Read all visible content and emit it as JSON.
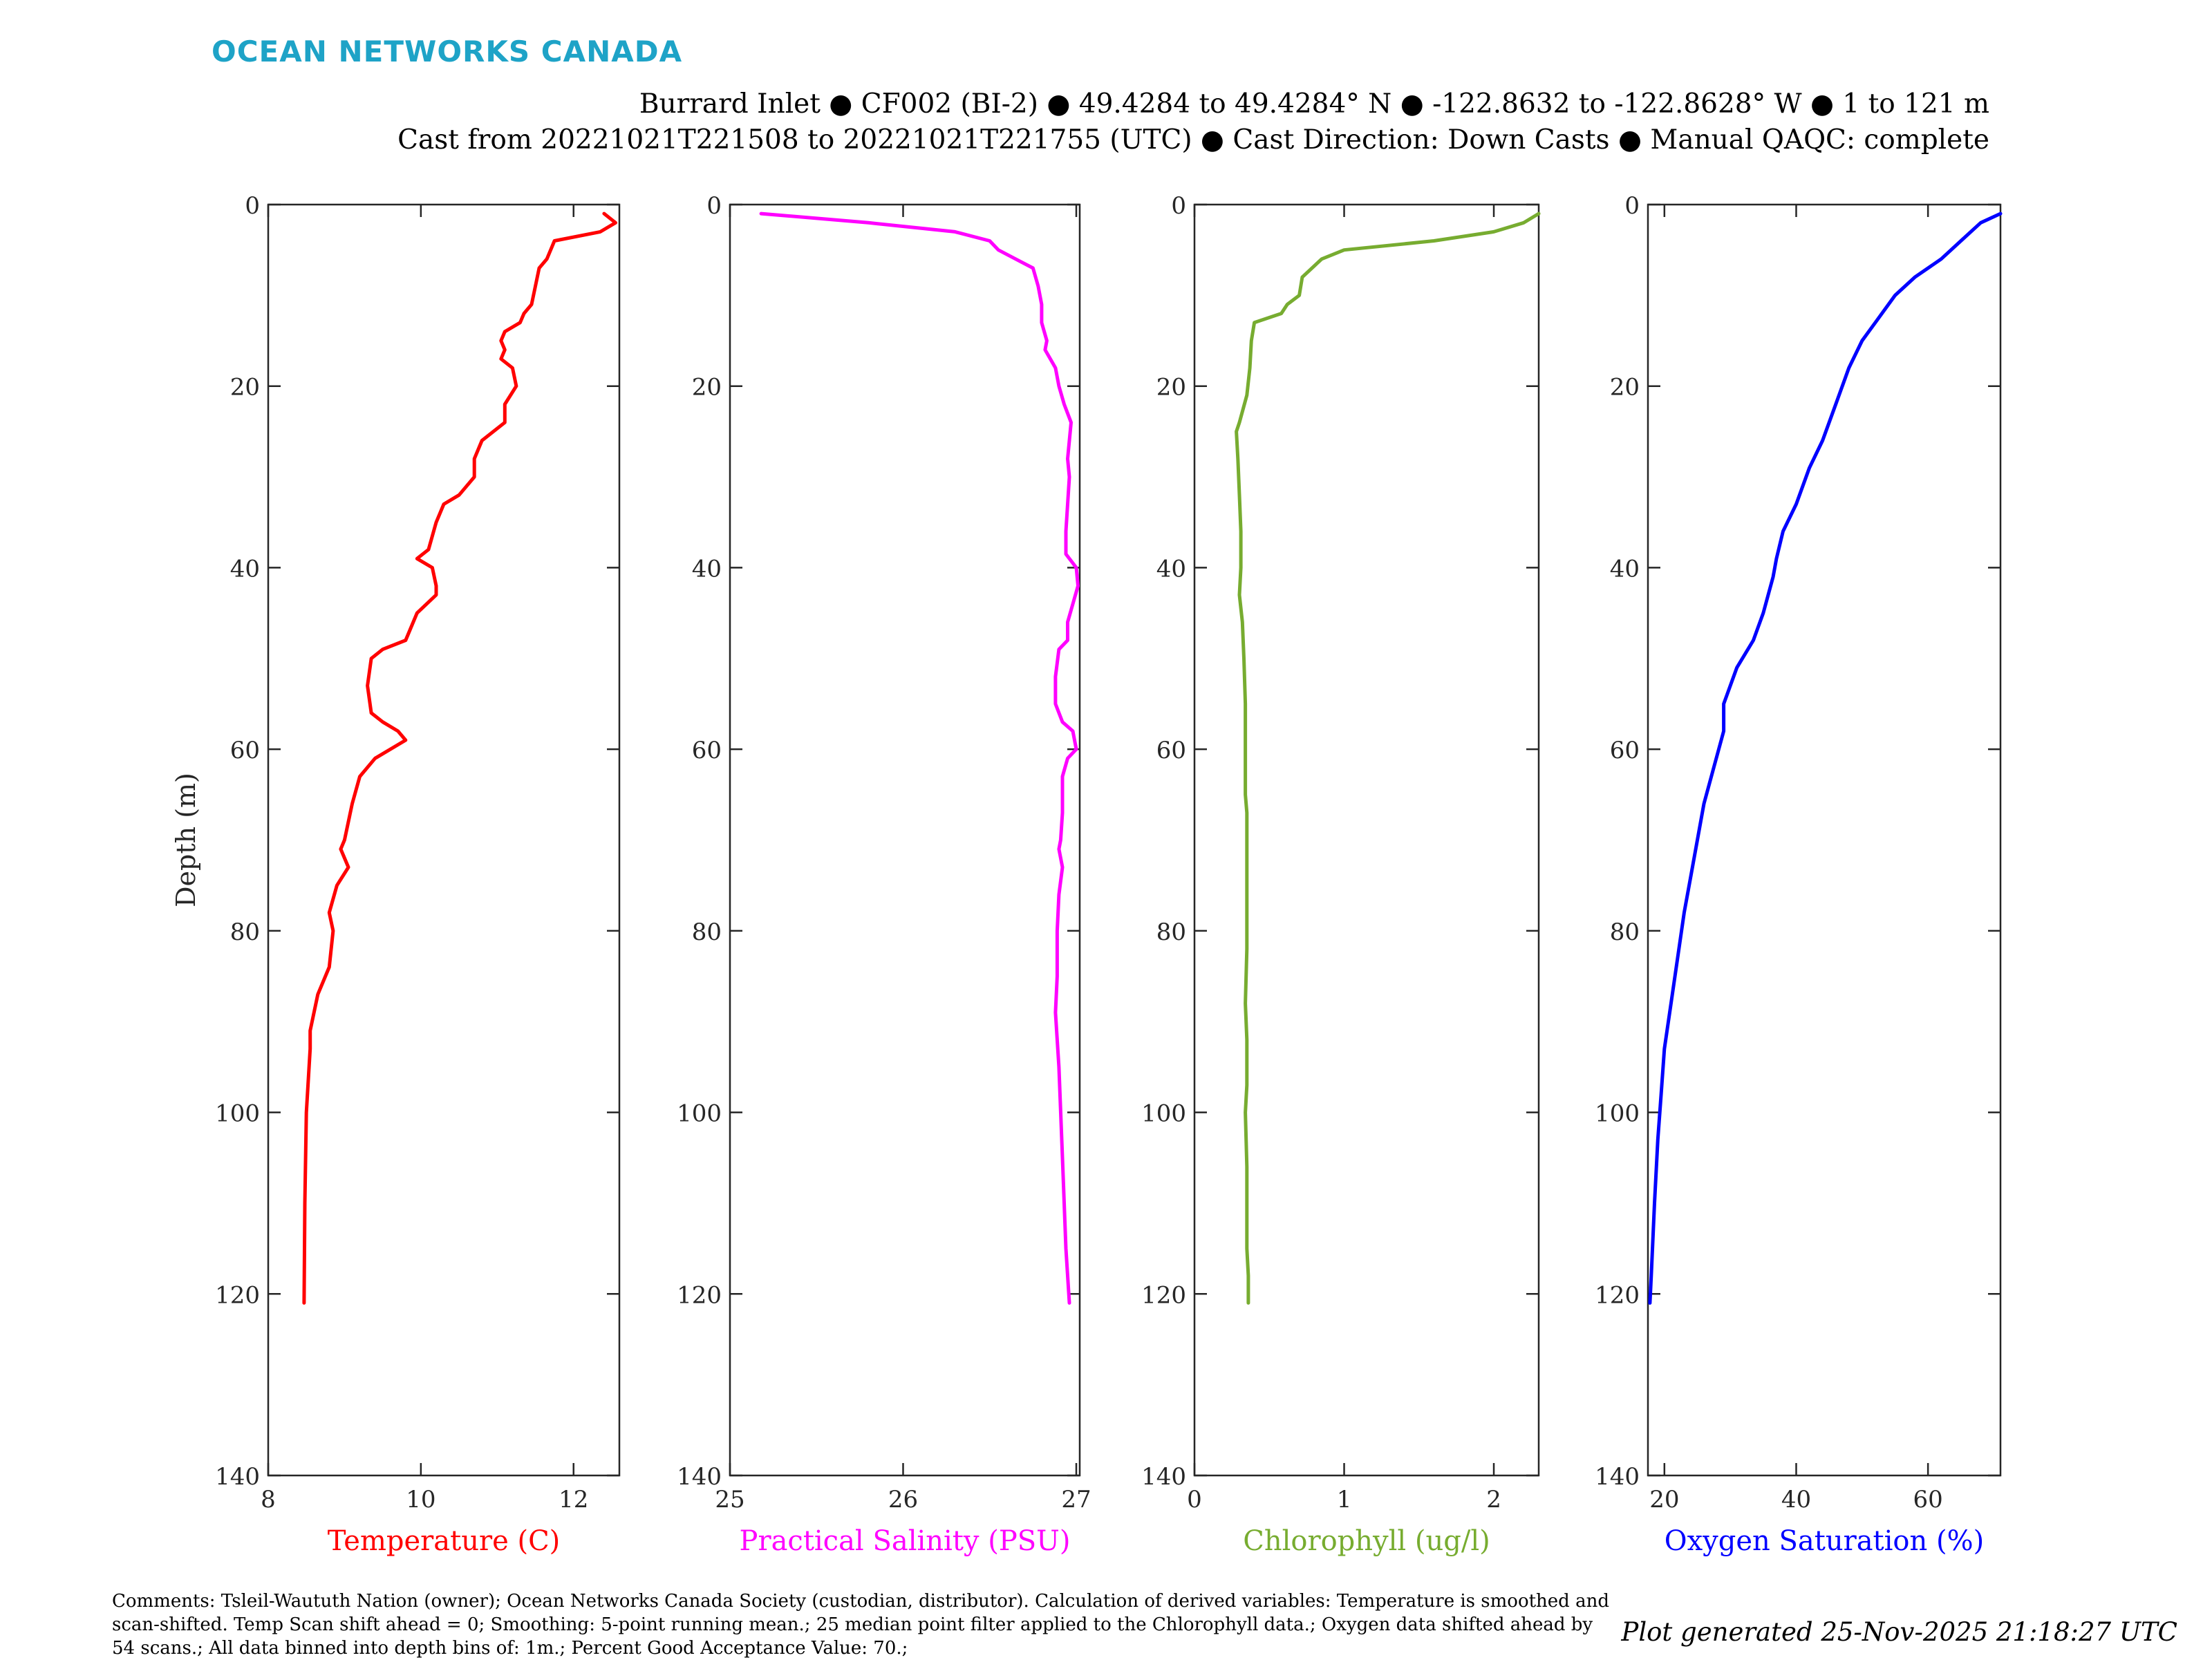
{
  "logo_text": "OCEAN NETWORKS CANADA",
  "header": {
    "line1": "Burrard Inlet ● CF002 (BI-2) ● 49.4284 to 49.4284° N ● -122.8632 to -122.8628° W ● 1 to 121 m",
    "line2": "Cast from 20221021T221508 to 20221021T221755 (UTC) ● Cast Direction: Down Casts ● Manual QAQC: complete"
  },
  "comments": "Comments: Tsleil-Waututh Nation (owner); Ocean Networks Canada Society (custodian, distributor). Calculation of derived variables: Temperature is smoothed and scan-shifted. Temp Scan shift ahead = 0; Smoothing: 5-point running mean.; 25 median point filter applied to the Chlorophyll data.; Oxygen data shifted ahead by 54 scans.; All data binned into depth bins of: 1m.; Percent Good Acceptance Value: 70.;",
  "generated": "Plot generated 25-Nov-2025 21:18:27 UTC",
  "chart_data": [
    {
      "type": "line",
      "xlabel": "Temperature (C)",
      "ylabel": "Depth (m)",
      "color": "#ff0000",
      "xlim": [
        8,
        12.6
      ],
      "ylim": [
        0,
        140
      ],
      "y_reversed": true,
      "xticks": [
        8,
        10,
        12
      ],
      "yticks": [
        0,
        20,
        40,
        60,
        80,
        100,
        120,
        140
      ],
      "points": [
        [
          12.4,
          1
        ],
        [
          12.55,
          2
        ],
        [
          12.35,
          3
        ],
        [
          11.75,
          4
        ],
        [
          11.7,
          5
        ],
        [
          11.65,
          6
        ],
        [
          11.55,
          7
        ],
        [
          11.5,
          9
        ],
        [
          11.45,
          11
        ],
        [
          11.35,
          12
        ],
        [
          11.3,
          13
        ],
        [
          11.1,
          14
        ],
        [
          11.05,
          15
        ],
        [
          11.1,
          16
        ],
        [
          11.05,
          17
        ],
        [
          11.2,
          18
        ],
        [
          11.25,
          20
        ],
        [
          11.1,
          22
        ],
        [
          11.1,
          24
        ],
        [
          10.8,
          26
        ],
        [
          10.7,
          28
        ],
        [
          10.7,
          30
        ],
        [
          10.5,
          32
        ],
        [
          10.3,
          33
        ],
        [
          10.2,
          35
        ],
        [
          10.1,
          38
        ],
        [
          9.95,
          39
        ],
        [
          10.15,
          40
        ],
        [
          10.2,
          42
        ],
        [
          10.2,
          43
        ],
        [
          9.95,
          45
        ],
        [
          9.85,
          47
        ],
        [
          9.8,
          48
        ],
        [
          9.5,
          49
        ],
        [
          9.35,
          50
        ],
        [
          9.3,
          53
        ],
        [
          9.35,
          56
        ],
        [
          9.5,
          57
        ],
        [
          9.7,
          58
        ],
        [
          9.8,
          59
        ],
        [
          9.4,
          61
        ],
        [
          9.2,
          63
        ],
        [
          9.1,
          66
        ],
        [
          9.0,
          70
        ],
        [
          8.95,
          71
        ],
        [
          9.05,
          73
        ],
        [
          8.9,
          75
        ],
        [
          8.8,
          78
        ],
        [
          8.85,
          80
        ],
        [
          8.8,
          84
        ],
        [
          8.65,
          87
        ],
        [
          8.55,
          91
        ],
        [
          8.55,
          93
        ],
        [
          8.5,
          100
        ],
        [
          8.48,
          110
        ],
        [
          8.47,
          121
        ]
      ]
    },
    {
      "type": "line",
      "xlabel": "Practical Salinity (PSU)",
      "ylabel": "",
      "color": "#ff00ff",
      "xlim": [
        25,
        27.02
      ],
      "ylim": [
        0,
        140
      ],
      "y_reversed": true,
      "xticks": [
        25,
        26,
        27
      ],
      "yticks": [
        0,
        20,
        40,
        60,
        80,
        100,
        120,
        140
      ],
      "points": [
        [
          25.18,
          1
        ],
        [
          25.8,
          2
        ],
        [
          26.3,
          3
        ],
        [
          26.5,
          4
        ],
        [
          26.55,
          5
        ],
        [
          26.65,
          6
        ],
        [
          26.75,
          7
        ],
        [
          26.78,
          9
        ],
        [
          26.8,
          11
        ],
        [
          26.8,
          13
        ],
        [
          26.83,
          15
        ],
        [
          26.82,
          16
        ],
        [
          26.85,
          17
        ],
        [
          26.88,
          18
        ],
        [
          26.9,
          20
        ],
        [
          26.93,
          22
        ],
        [
          26.97,
          24
        ],
        [
          26.96,
          26
        ],
        [
          26.95,
          28
        ],
        [
          26.96,
          30
        ],
        [
          26.95,
          33
        ],
        [
          26.94,
          36
        ],
        [
          26.94,
          38.5
        ],
        [
          26.96,
          39
        ],
        [
          27.0,
          40
        ],
        [
          27.01,
          42
        ],
        [
          26.98,
          44
        ],
        [
          26.95,
          46
        ],
        [
          26.95,
          48
        ],
        [
          26.9,
          49
        ],
        [
          26.88,
          52
        ],
        [
          26.88,
          55
        ],
        [
          26.92,
          57
        ],
        [
          26.98,
          58
        ],
        [
          27.0,
          60
        ],
        [
          26.95,
          61
        ],
        [
          26.92,
          63
        ],
        [
          26.92,
          67
        ],
        [
          26.91,
          70
        ],
        [
          26.9,
          71
        ],
        [
          26.92,
          73
        ],
        [
          26.9,
          76
        ],
        [
          26.89,
          80
        ],
        [
          26.89,
          85
        ],
        [
          26.88,
          89
        ],
        [
          26.9,
          95
        ],
        [
          26.92,
          105
        ],
        [
          26.94,
          115
        ],
        [
          26.96,
          121
        ]
      ]
    },
    {
      "type": "line",
      "xlabel": "Chlorophyll (ug/l)",
      "ylabel": "",
      "color": "#77ac30",
      "xlim": [
        0,
        2.3
      ],
      "ylim": [
        0,
        140
      ],
      "y_reversed": true,
      "xticks": [
        0,
        1,
        2
      ],
      "yticks": [
        0,
        20,
        40,
        60,
        80,
        100,
        120,
        140
      ],
      "points": [
        [
          2.3,
          1
        ],
        [
          2.2,
          2
        ],
        [
          2.0,
          3
        ],
        [
          1.6,
          4
        ],
        [
          1.0,
          5
        ],
        [
          0.85,
          6
        ],
        [
          0.72,
          8
        ],
        [
          0.7,
          10
        ],
        [
          0.62,
          11
        ],
        [
          0.58,
          12
        ],
        [
          0.4,
          13
        ],
        [
          0.38,
          15
        ],
        [
          0.37,
          18
        ],
        [
          0.35,
          21
        ],
        [
          0.3,
          24
        ],
        [
          0.28,
          25
        ],
        [
          0.29,
          28
        ],
        [
          0.3,
          32
        ],
        [
          0.31,
          36
        ],
        [
          0.31,
          40
        ],
        [
          0.3,
          43
        ],
        [
          0.32,
          46
        ],
        [
          0.33,
          50
        ],
        [
          0.34,
          55
        ],
        [
          0.34,
          60
        ],
        [
          0.34,
          65
        ],
        [
          0.35,
          67
        ],
        [
          0.35,
          75
        ],
        [
          0.35,
          82
        ],
        [
          0.34,
          88
        ],
        [
          0.35,
          92
        ],
        [
          0.35,
          97
        ],
        [
          0.34,
          100
        ],
        [
          0.35,
          106
        ],
        [
          0.35,
          112
        ],
        [
          0.35,
          115
        ],
        [
          0.36,
          118
        ],
        [
          0.36,
          121
        ]
      ]
    },
    {
      "type": "line",
      "xlabel": "Oxygen Saturation (%)",
      "ylabel": "",
      "color": "#0000ff",
      "xlim": [
        17.5,
        71
      ],
      "ylim": [
        0,
        140
      ],
      "y_reversed": true,
      "xticks": [
        20,
        40,
        60
      ],
      "yticks": [
        0,
        20,
        40,
        60,
        80,
        100,
        120,
        140
      ],
      "points": [
        [
          71,
          1
        ],
        [
          68,
          2
        ],
        [
          65,
          4
        ],
        [
          62,
          6
        ],
        [
          58,
          8
        ],
        [
          55,
          10
        ],
        [
          52,
          13
        ],
        [
          50,
          15
        ],
        [
          48,
          18
        ],
        [
          46,
          22
        ],
        [
          44,
          26
        ],
        [
          42,
          29
        ],
        [
          40,
          33
        ],
        [
          38,
          36
        ],
        [
          37,
          39
        ],
        [
          36.5,
          41
        ],
        [
          35,
          45
        ],
        [
          33.5,
          48
        ],
        [
          31,
          51
        ],
        [
          29.5,
          54
        ],
        [
          29,
          55
        ],
        [
          29,
          58
        ],
        [
          27.5,
          62
        ],
        [
          26,
          66
        ],
        [
          25,
          70
        ],
        [
          24,
          74
        ],
        [
          23,
          78
        ],
        [
          22,
          83
        ],
        [
          21,
          88
        ],
        [
          20,
          93
        ],
        [
          19.5,
          98
        ],
        [
          19,
          103
        ],
        [
          18.5,
          110
        ],
        [
          18,
          118
        ],
        [
          17.8,
          121
        ]
      ]
    }
  ]
}
